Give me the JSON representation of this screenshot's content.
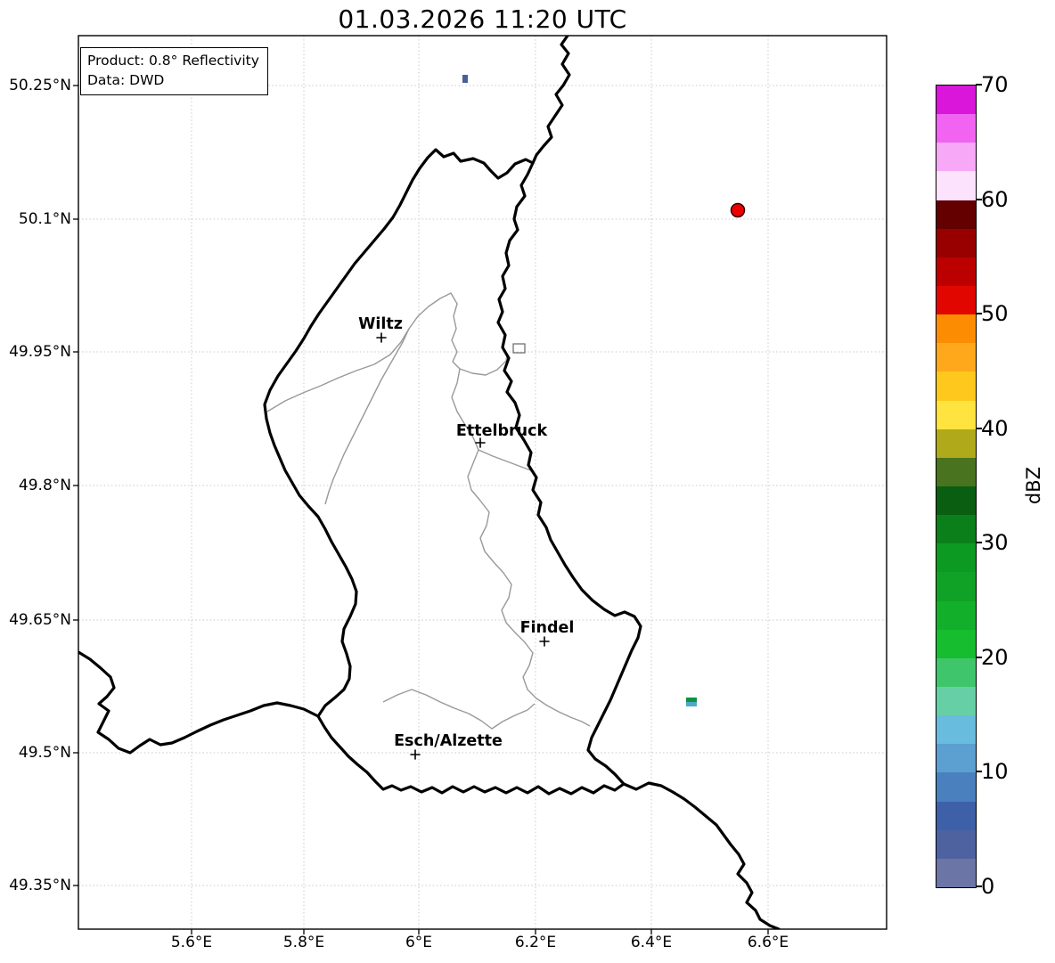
{
  "title": "01.03.2026 11:20 UTC",
  "info_box": {
    "line1": "Product: 0.8° Reflectivity",
    "line2": "Data: DWD"
  },
  "axes": {
    "x_tick_labels": [
      "5.6°E",
      "5.8°E",
      "6°E",
      "6.2°E",
      "6.4°E",
      "6.6°E"
    ],
    "y_tick_labels": [
      "50.25°N",
      "50.1°N",
      "49.95°N",
      "49.8°N",
      "49.65°N",
      "49.5°N",
      "49.35°N"
    ]
  },
  "cities": [
    {
      "name": "Wiltz"
    },
    {
      "name": "Ettelbruck"
    },
    {
      "name": "Findel"
    },
    {
      "name": "Esch/Alzette"
    }
  ],
  "colorbar": {
    "label": "dBZ",
    "tick_labels": [
      "0",
      "10",
      "20",
      "30",
      "40",
      "50",
      "60",
      "70"
    ],
    "unit_range": [
      0,
      70
    ],
    "colors": [
      "#6B76A6",
      "#4E62A0",
      "#3D60A8",
      "#4980BD",
      "#5C9FD1",
      "#68BCDD",
      "#66CFA6",
      "#3FC66B",
      "#16BD2E",
      "#12B02A",
      "#0FA226",
      "#0D9A23",
      "#0B7F1A",
      "#095E12",
      "#49731F",
      "#B0A91A",
      "#FFE33E",
      "#FFC81C",
      "#FFA81C",
      "#FC8D03",
      "#E10600",
      "#BC0000",
      "#980000",
      "#640000",
      "#FCE2FC",
      "#F7A8F7",
      "#F163F1",
      "#D916D9"
    ]
  },
  "radar_echoes": [
    {
      "shape": "dot",
      "color": "#EC0000",
      "edge": "#330000"
    },
    {
      "shape": "pixel",
      "color": "#4A5F99"
    },
    {
      "shape": "pixel-pair",
      "colors": [
        "#0E9140",
        "#4FA8CC"
      ]
    }
  ],
  "map_colors": {
    "country_border": "#000000",
    "district_border": "#999999",
    "gridline": "#c8c8c8"
  }
}
